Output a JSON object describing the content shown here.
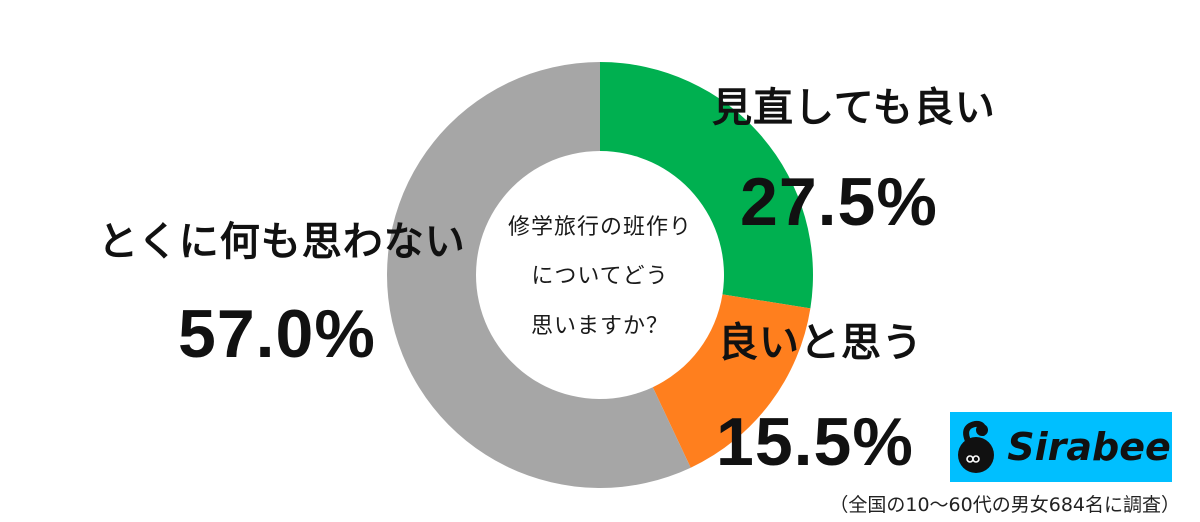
{
  "chart_data": {
    "type": "pie",
    "subtype": "donut",
    "title": "修学旅行の班作りについてどう思いますか？",
    "categories": [
      "見直しても良い",
      "良いと思う",
      "とくに何も思わない"
    ],
    "values": [
      27.5,
      15.5,
      57.0
    ],
    "unit": "%",
    "colors": [
      "#00b050",
      "#ff7f1e",
      "#a6a6a6"
    ],
    "start_angle": "12 o'clock, clockwise",
    "legend": "none (labels placed next to segments)"
  },
  "center": {
    "lines": [
      "修学旅行の班作り",
      "についてどう",
      "思いますか？"
    ]
  },
  "labels": [
    {
      "category": "見直しても良い",
      "percent": "27.5%"
    },
    {
      "category": "良いと思う",
      "percent": "15.5%"
    },
    {
      "category": "とくに何も思わない",
      "percent": "57.0%"
    }
  ],
  "logo": {
    "text": "Sirabee",
    "background": "#00bfff"
  },
  "footnote": "（全国の10〜60代の男女684名に調査）"
}
